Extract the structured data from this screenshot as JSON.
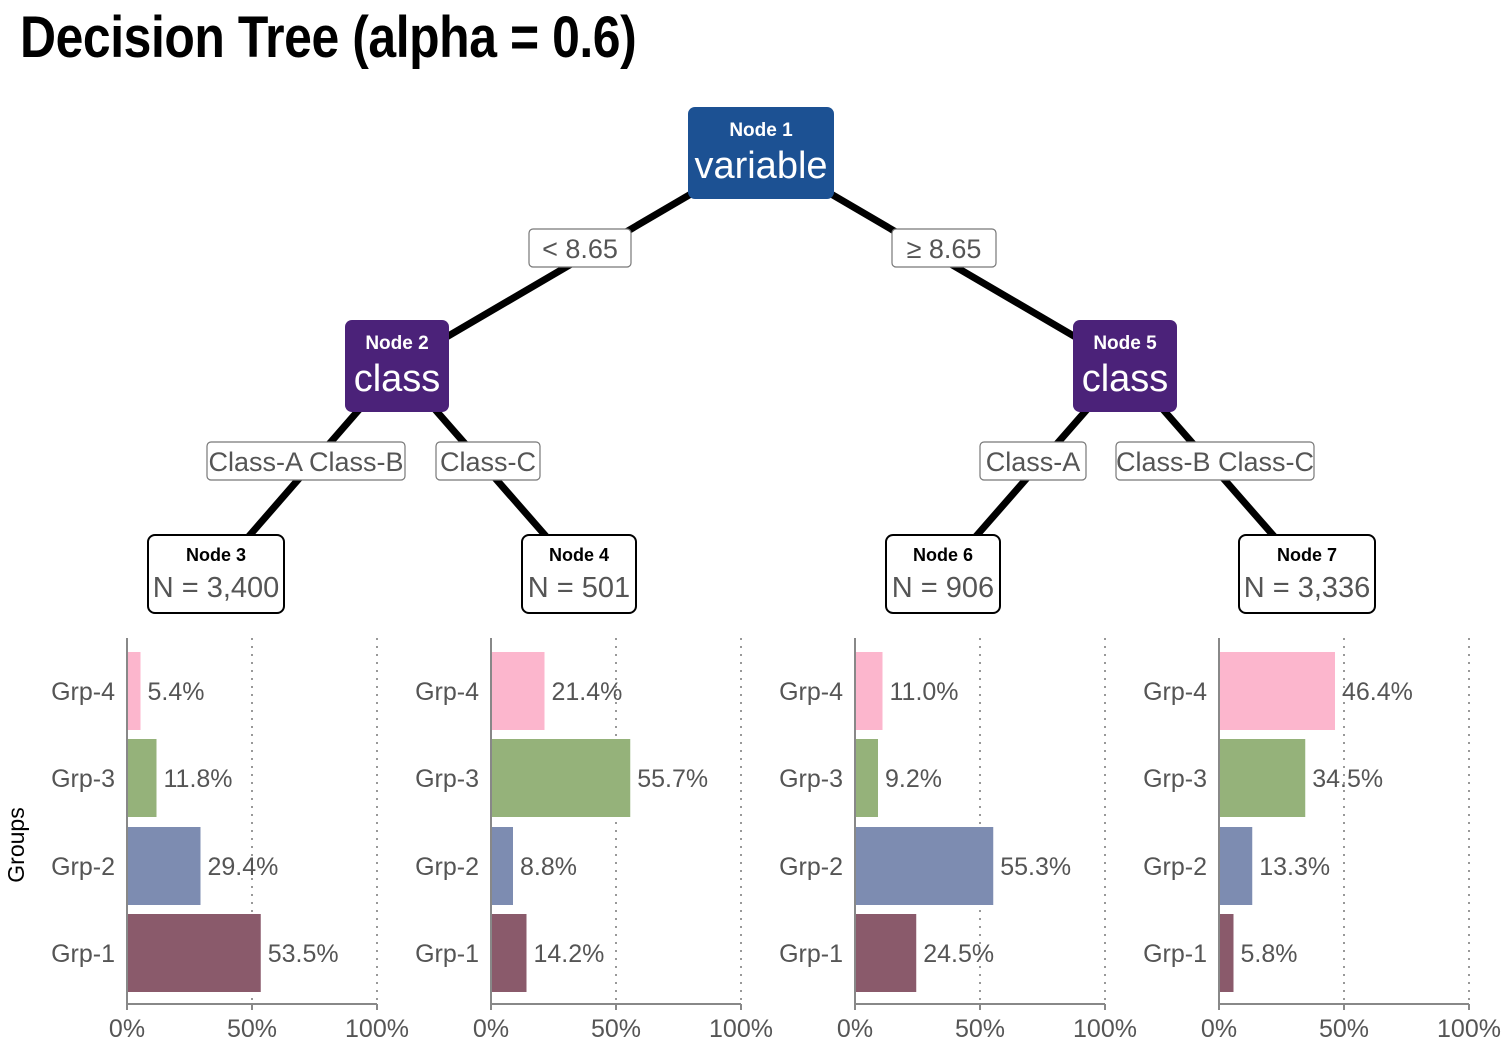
{
  "title": "Decision Tree (alpha = 0.6)",
  "colors": {
    "root_node": "#1c5193",
    "split_node": "#4b2279",
    "Grp-4": "#fcb6cd",
    "Grp-3": "#95b27a",
    "Grp-2": "#7d8cb1",
    "Grp-1": "#8a5a6b",
    "edge": "#000000",
    "label_text": "#555555"
  },
  "tree": {
    "nodes": [
      {
        "id": 1,
        "header": "Node 1",
        "label": "variable",
        "kind": "root"
      },
      {
        "id": 2,
        "header": "Node 2",
        "label": "class",
        "kind": "split"
      },
      {
        "id": 5,
        "header": "Node 5",
        "label": "class",
        "kind": "split"
      },
      {
        "id": 3,
        "header": "Node 3",
        "label": "N = 3,400",
        "kind": "leaf"
      },
      {
        "id": 4,
        "header": "Node 4",
        "label": "N = 501",
        "kind": "leaf"
      },
      {
        "id": 6,
        "header": "Node 6",
        "label": "N = 906",
        "kind": "leaf"
      },
      {
        "id": 7,
        "header": "Node 7",
        "label": "N = 3,336",
        "kind": "leaf"
      }
    ],
    "edges": [
      {
        "from": 1,
        "to": 2,
        "label": "< 8.65"
      },
      {
        "from": 1,
        "to": 5,
        "label": "≥ 8.65"
      },
      {
        "from": 2,
        "to": 3,
        "label": "Class-A Class-B"
      },
      {
        "from": 2,
        "to": 4,
        "label": "Class-C"
      },
      {
        "from": 5,
        "to": 6,
        "label": "Class-A"
      },
      {
        "from": 5,
        "to": 7,
        "label": "Class-B Class-C"
      }
    ]
  },
  "chart_data": {
    "type": "bar",
    "orientation": "horizontal",
    "ylabel": "Groups",
    "categories": [
      "Grp-4",
      "Grp-3",
      "Grp-2",
      "Grp-1"
    ],
    "xlim": [
      0,
      100
    ],
    "xticks": [
      "0%",
      "50%",
      "100%"
    ],
    "grid": "dotted vertical at 50% and 100%",
    "panels": [
      {
        "node": "Node 3",
        "values": [
          5.4,
          11.8,
          29.4,
          53.5
        ],
        "labels": [
          "5.4%",
          "11.8%",
          "29.4%",
          "53.5%"
        ]
      },
      {
        "node": "Node 4",
        "values": [
          21.4,
          55.7,
          8.8,
          14.2
        ],
        "labels": [
          "21.4%",
          "55.7%",
          "8.8%",
          "14.2%"
        ]
      },
      {
        "node": "Node 6",
        "values": [
          11.0,
          9.2,
          55.3,
          24.5
        ],
        "labels": [
          "11.0%",
          "9.2%",
          "55.3%",
          "24.5%"
        ]
      },
      {
        "node": "Node 7",
        "values": [
          46.4,
          34.5,
          13.3,
          5.8
        ],
        "labels": [
          "46.4%",
          "34.5%",
          "13.3%",
          "5.8%"
        ]
      }
    ]
  }
}
